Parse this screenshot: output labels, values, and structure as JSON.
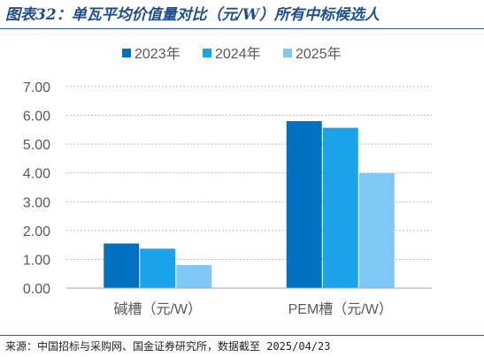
{
  "figure": {
    "title": "图表32：单瓦平均价值量对比（元/W）所有中标候选人",
    "source": "来源：中国招标与采购网、国金证券研究所，数据截至 2025/04/23"
  },
  "chart_data": {
    "type": "bar",
    "categories": [
      "碱槽（元/W）",
      "PEM槽（元/W）"
    ],
    "series": [
      {
        "name": "2023年",
        "values": [
          1.55,
          5.8
        ],
        "color": "#0070c0"
      },
      {
        "name": "2024年",
        "values": [
          1.37,
          5.57
        ],
        "color": "#1aa3e8"
      },
      {
        "name": "2025年",
        "values": [
          0.8,
          3.99
        ],
        "color": "#7fc8f5"
      }
    ],
    "ylim": [
      0,
      7
    ],
    "yticks": [
      "0.00",
      "1.00",
      "2.00",
      "3.00",
      "4.00",
      "5.00",
      "6.00",
      "7.00"
    ],
    "grid": true,
    "legend": "top-center",
    "colors": {
      "axis_text": "#595959",
      "grid": "#bfbfbf",
      "axis_line": "#a6a6a6"
    }
  }
}
